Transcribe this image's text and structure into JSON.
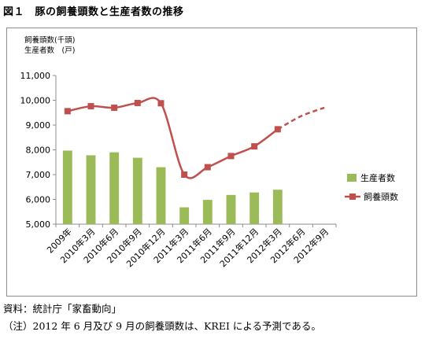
{
  "figure_title": "図１　豚の飼養頭数と生産者数の推移",
  "source_note": "資料：統計庁「家畜動向」",
  "footnote": "（注）2012 年 6 月及び 9 月の飼養頭数は、KREI による予測である。",
  "colors": {
    "bar": "#9bbb59",
    "line": "#c0504d",
    "grid": "#8c8c8c"
  },
  "chart_data": {
    "type": "bar",
    "unit_labels": [
      "飼養頭数(千頭)",
      "生産者数　(戸)"
    ],
    "categories": [
      "2009年",
      "2010年3月",
      "2010年6月",
      "2010年9月",
      "2010年12月",
      "2011年3月",
      "2011年6月",
      "2011年9月",
      "2011年12月",
      "2012年3月",
      "2012年6月",
      "2012年9月"
    ],
    "ylim": [
      5000,
      11000
    ],
    "yticks": [
      "5,000",
      "6,000",
      "7,000",
      "8,000",
      "9,000",
      "10,000",
      "11,000"
    ],
    "series": [
      {
        "name": "生産者数",
        "type": "bar",
        "values": [
          7970,
          7780,
          7900,
          7680,
          7300,
          5680,
          5980,
          6180,
          6280,
          6390,
          null,
          null
        ]
      },
      {
        "name": "飼養頭数",
        "type": "line",
        "projected_from_index": 9,
        "values": [
          9560,
          9760,
          9700,
          9890,
          9880,
          7000,
          7300,
          7750,
          8140,
          8830,
          9360,
          9700
        ]
      }
    ],
    "legend_position": "right"
  }
}
